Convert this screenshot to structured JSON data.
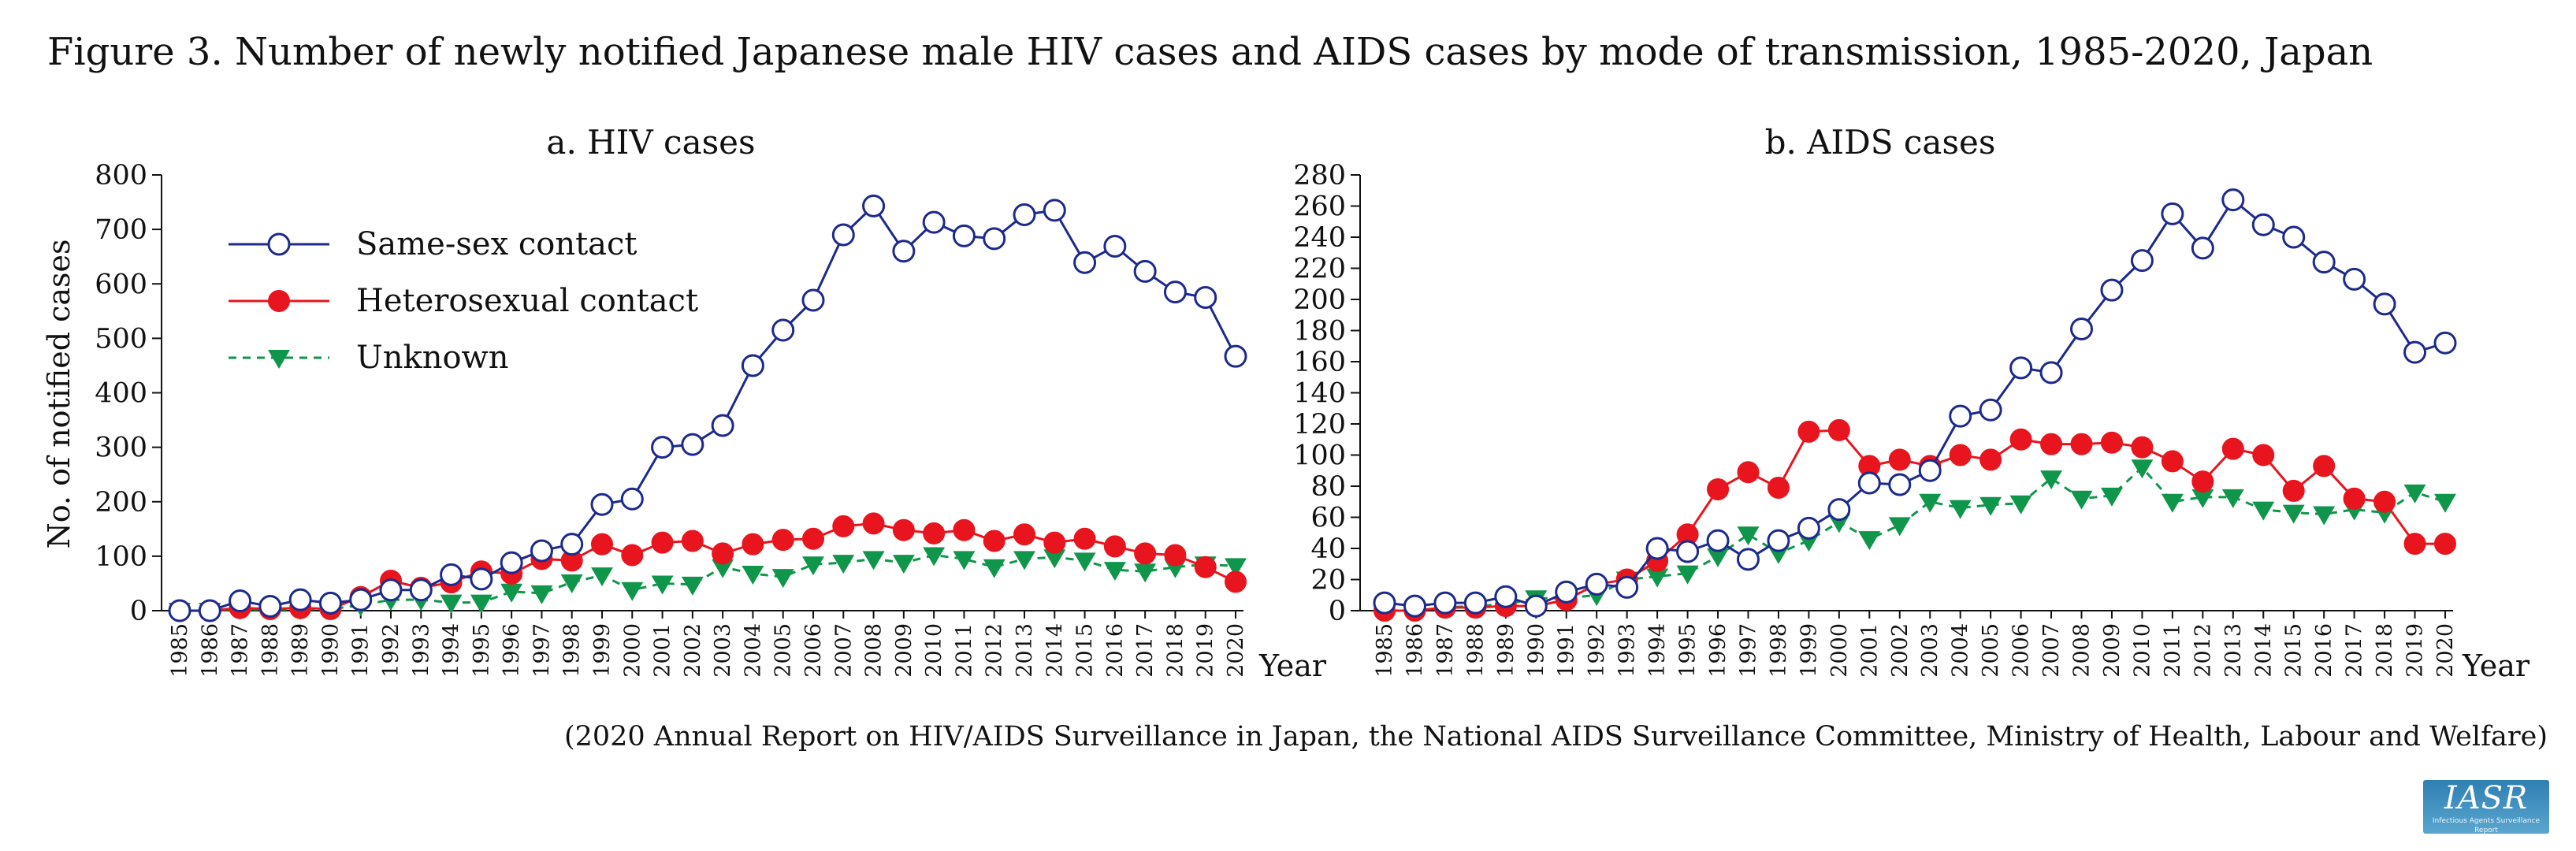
{
  "figure_title": "Figure 3. Number of newly notified Japanese male HIV cases and AIDS cases by mode of transmission, 1985-2020, Japan",
  "source_note": "(2020 Annual Report on HIV/AIDS Surveillance in Japan, the National AIDS Surveillance Committee, Ministry of Health, Labour and Welfare)",
  "logo": {
    "text": "IASR",
    "subtext": "Infectious Agents Surveillance Report"
  },
  "colors": {
    "same_sex": "#1c2a8c",
    "heterosexual": "#e8141e",
    "unknown": "#10964a"
  },
  "legend": {
    "placement": "top-left of panel a",
    "items": [
      "Same-sex contact",
      "Heterosexual contact",
      "Unknown"
    ]
  },
  "chart_data": [
    {
      "type": "line",
      "title": "a. HIV cases",
      "xlabel": "Year",
      "ylabel": "No. of notified cases",
      "ylim": [
        0,
        800
      ],
      "yticks": [
        0,
        100,
        200,
        300,
        400,
        500,
        600,
        700,
        800
      ],
      "x": [
        "1985",
        "1986",
        "1987",
        "1988",
        "1989",
        "1990",
        "1991",
        "1992",
        "1993",
        "1994",
        "1995",
        "1996",
        "1997",
        "1998",
        "1999",
        "2000",
        "2001",
        "2002",
        "2003",
        "2004",
        "2005",
        "2006",
        "2007",
        "2008",
        "2009",
        "2010",
        "2011",
        "2012",
        "2013",
        "2014",
        "2015",
        "2016",
        "2017",
        "2018",
        "2019",
        "2020"
      ],
      "series": [
        {
          "name": "Same-sex contact",
          "style": "open-circle-solid",
          "values": [
            0,
            0,
            18,
            8,
            20,
            14,
            20,
            38,
            38,
            66,
            58,
            88,
            110,
            122,
            195,
            205,
            300,
            305,
            340,
            450,
            515,
            570,
            690,
            743,
            660,
            713,
            688,
            683,
            727,
            735,
            639,
            669,
            623,
            585,
            575,
            467
          ]
        },
        {
          "name": "Heterosexual contact",
          "style": "filled-circle-solid",
          "values": [
            0,
            0,
            5,
            3,
            5,
            3,
            25,
            55,
            42,
            52,
            72,
            68,
            95,
            92,
            122,
            102,
            125,
            128,
            105,
            122,
            130,
            132,
            155,
            160,
            148,
            142,
            148,
            128,
            140,
            125,
            132,
            118,
            105,
            102,
            80,
            53
          ]
        },
        {
          "name": "Unknown",
          "style": "triangle-down-dashed",
          "values": [
            0,
            0,
            3,
            2,
            3,
            3,
            10,
            20,
            20,
            15,
            15,
            35,
            32,
            52,
            65,
            38,
            50,
            48,
            80,
            68,
            62,
            85,
            88,
            95,
            88,
            102,
            95,
            80,
            95,
            98,
            92,
            75,
            72,
            80,
            85,
            82
          ]
        }
      ]
    },
    {
      "type": "line",
      "title": "b. AIDS cases",
      "xlabel": "Year",
      "ylabel": "",
      "ylim": [
        0,
        280
      ],
      "yticks": [
        0,
        20,
        40,
        60,
        80,
        100,
        120,
        140,
        160,
        180,
        200,
        220,
        240,
        260,
        280
      ],
      "x": [
        "1985",
        "1986",
        "1987",
        "1988",
        "1989",
        "1990",
        "1991",
        "1992",
        "1993",
        "1994",
        "1995",
        "1996",
        "1997",
        "1998",
        "1999",
        "2000",
        "2001",
        "2002",
        "2003",
        "2004",
        "2005",
        "2006",
        "2007",
        "2008",
        "2009",
        "2010",
        "2011",
        "2012",
        "2013",
        "2014",
        "2015",
        "2016",
        "2017",
        "2018",
        "2019",
        "2020"
      ],
      "series": [
        {
          "name": "Same-sex contact",
          "style": "open-circle-solid",
          "values": [
            5,
            3,
            5,
            5,
            9,
            3,
            12,
            17,
            15,
            40,
            38,
            45,
            33,
            45,
            53,
            65,
            82,
            81,
            90,
            125,
            129,
            156,
            153,
            181,
            206,
            225,
            255,
            233,
            264,
            248,
            240,
            224,
            213,
            197,
            166,
            172
          ]
        },
        {
          "name": "Heterosexual contact",
          "style": "filled-circle-solid",
          "values": [
            0,
            0,
            2,
            2,
            3,
            3,
            7,
            17,
            20,
            32,
            49,
            78,
            89,
            79,
            115,
            116,
            93,
            97,
            93,
            100,
            97,
            110,
            107,
            107,
            108,
            105,
            96,
            83,
            104,
            100,
            77,
            93,
            72,
            70,
            43,
            43
          ]
        },
        {
          "name": "Unknown",
          "style": "triangle-down-dashed",
          "values": [
            0,
            0,
            2,
            3,
            4,
            8,
            8,
            10,
            20,
            22,
            24,
            35,
            49,
            37,
            45,
            57,
            46,
            55,
            70,
            66,
            68,
            69,
            85,
            72,
            74,
            92,
            70,
            73,
            73,
            65,
            63,
            62,
            65,
            63,
            76,
            70
          ]
        }
      ]
    }
  ]
}
